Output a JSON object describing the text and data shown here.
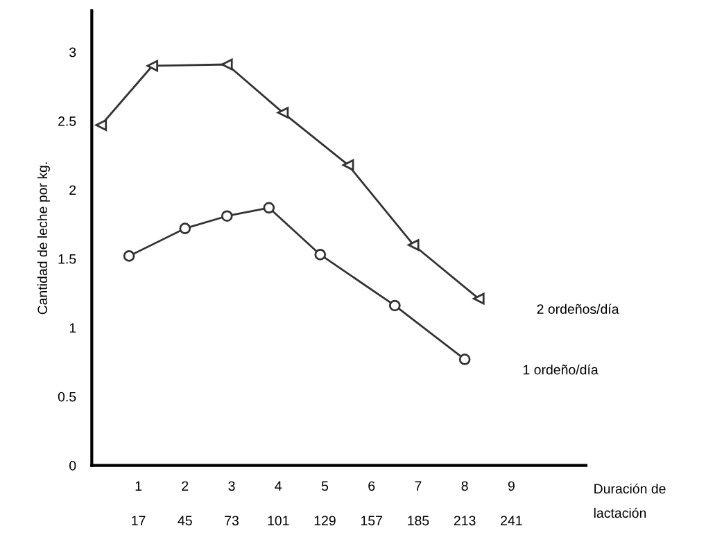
{
  "chart_data": {
    "type": "line",
    "ylabel": "Cantidad de leche por kg.",
    "xlabel": "Duración de\nlactación",
    "xlim": [
      0,
      10.6
    ],
    "ylim": [
      0,
      3.3
    ],
    "xticks": [
      1,
      2,
      3,
      4,
      5,
      6,
      7,
      8,
      9
    ],
    "x2lim": [
      -11,
      285.8
    ],
    "x2ticks": [
      17,
      45,
      73,
      101,
      129,
      157,
      185,
      213,
      241
    ],
    "yticks": [
      0,
      0.5,
      1,
      1.5,
      2,
      2.5,
      3
    ],
    "grid": false,
    "legend": false,
    "line_style": "solid",
    "series": [
      {
        "name": "2 ordeños/día",
        "color": "#333333",
        "marker": "triangle",
        "x": [
          0.2,
          1.3,
          2.9,
          4.1,
          5.5,
          6.9,
          8.3
        ],
        "values": [
          2.47,
          2.9,
          2.91,
          2.56,
          2.18,
          1.6,
          1.21
        ]
      },
      {
        "name": "1 ordeño/día",
        "color": "#333333",
        "marker": "circle",
        "x": [
          0.8,
          2.0,
          2.9,
          3.8,
          4.9,
          6.5,
          8.0
        ],
        "values": [
          1.52,
          1.72,
          1.81,
          1.87,
          1.53,
          1.16,
          0.77
        ]
      }
    ]
  }
}
